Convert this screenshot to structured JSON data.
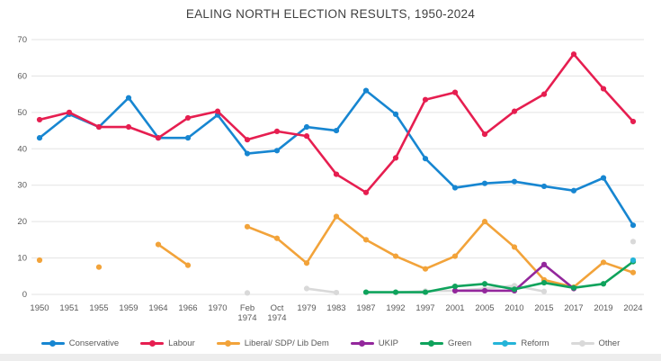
{
  "chart_data": {
    "type": "line",
    "title": "EALING NORTH ELECTION RESULTS, 1950-2024",
    "categories": [
      "1950",
      "1951",
      "1955",
      "1959",
      "1964",
      "1966",
      "1970",
      "Feb 1974",
      "Oct 1974",
      "1979",
      "1983",
      "1987",
      "1992",
      "1997",
      "2001",
      "2005",
      "2010",
      "2015",
      "2017",
      "2019",
      "2024"
    ],
    "xlabel": "",
    "ylabel": "",
    "ylim": [
      0,
      70
    ],
    "yticks": [
      0,
      10,
      20,
      30,
      40,
      50,
      60,
      70
    ],
    "grid": true,
    "legend_position": "bottom",
    "series": [
      {
        "name": "Conservative",
        "color": "#1786d1",
        "values": [
          43,
          49.5,
          46,
          54,
          43,
          43,
          49.3,
          38.7,
          39.5,
          46,
          45,
          56,
          49.5,
          37.3,
          29.3,
          30.5,
          31,
          29.7,
          28.5,
          32,
          19
        ]
      },
      {
        "name": "Labour",
        "color": "#e61e50",
        "values": [
          48,
          50,
          46,
          46,
          43,
          48.5,
          50.3,
          42.5,
          44.8,
          43.5,
          33,
          28,
          37.5,
          53.5,
          55.5,
          44,
          50.3,
          55,
          66,
          56.5,
          47.5
        ]
      },
      {
        "name": "Liberal/ SDP/ Lib Dem",
        "color": "#f2a33a",
        "values": [
          9.4,
          null,
          7.5,
          null,
          13.7,
          8,
          null,
          18.6,
          15.4,
          8.6,
          21.4,
          15,
          10.5,
          7,
          10.5,
          20,
          13,
          4,
          2,
          8.8,
          6
        ]
      },
      {
        "name": "UKIP",
        "color": "#93279c",
        "values": [
          null,
          null,
          null,
          null,
          null,
          null,
          null,
          null,
          null,
          null,
          null,
          null,
          null,
          null,
          1,
          1,
          1,
          8.2,
          1.6,
          null,
          null
        ]
      },
      {
        "name": "Green",
        "color": "#0fa35c",
        "values": [
          null,
          null,
          null,
          null,
          null,
          null,
          null,
          null,
          null,
          null,
          null,
          0.6,
          0.6,
          0.6,
          2.2,
          2.9,
          1.4,
          3.2,
          1.8,
          2.9,
          9
        ]
      },
      {
        "name": "Reform",
        "color": "#25b4d8",
        "values": [
          null,
          null,
          null,
          null,
          null,
          null,
          null,
          null,
          null,
          null,
          null,
          null,
          null,
          null,
          null,
          null,
          null,
          null,
          null,
          null,
          9.4
        ]
      },
      {
        "name": "Other",
        "color": "#d9d9d9",
        "values": [
          null,
          null,
          null,
          null,
          null,
          null,
          null,
          0.4,
          null,
          1.6,
          0.5,
          null,
          0.5,
          0.9,
          1,
          1.6,
          2.4,
          0.8,
          null,
          null,
          14.5
        ]
      }
    ],
    "axis_text_color": "#595959",
    "gridline_color": "#e3e3e3"
  }
}
